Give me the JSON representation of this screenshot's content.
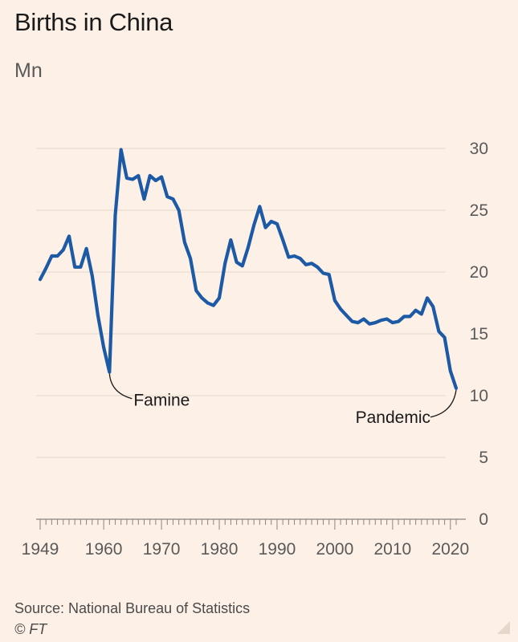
{
  "chart_data": {
    "type": "line",
    "title": "Births in China",
    "ylabel": "Mn",
    "xlabel": "",
    "ylim": [
      0,
      30
    ],
    "xlim": [
      1949,
      2021
    ],
    "y_ticks": [
      0,
      5,
      10,
      15,
      20,
      25,
      30
    ],
    "x_ticks": [
      1949,
      1960,
      1970,
      1980,
      1990,
      2000,
      2010,
      2020
    ],
    "grid": true,
    "series": [
      {
        "name": "Births",
        "color": "#1d5aa6",
        "x": [
          1949,
          1950,
          1951,
          1952,
          1953,
          1954,
          1955,
          1956,
          1957,
          1958,
          1959,
          1960,
          1961,
          1962,
          1963,
          1964,
          1965,
          1966,
          1967,
          1968,
          1969,
          1970,
          1971,
          1972,
          1973,
          1974,
          1975,
          1976,
          1977,
          1978,
          1979,
          1980,
          1981,
          1982,
          1983,
          1984,
          1985,
          1986,
          1987,
          1988,
          1989,
          1990,
          1991,
          1992,
          1993,
          1994,
          1995,
          1996,
          1997,
          1998,
          1999,
          2000,
          2001,
          2002,
          2003,
          2004,
          2005,
          2006,
          2007,
          2008,
          2009,
          2010,
          2011,
          2012,
          2013,
          2014,
          2015,
          2016,
          2017,
          2018,
          2019,
          2020,
          2021
        ],
        "values": [
          19.4,
          20.3,
          21.3,
          21.3,
          21.8,
          22.9,
          20.4,
          20.4,
          21.9,
          19.7,
          16.5,
          13.9,
          11.9,
          24.6,
          29.9,
          27.6,
          27.5,
          27.8,
          25.9,
          27.8,
          27.4,
          27.7,
          26.1,
          25.9,
          25.0,
          22.4,
          21.1,
          18.5,
          17.9,
          17.5,
          17.3,
          17.9,
          20.7,
          22.6,
          20.8,
          20.5,
          22.0,
          23.8,
          25.3,
          23.6,
          24.1,
          23.9,
          22.6,
          21.2,
          21.3,
          21.1,
          20.6,
          20.7,
          20.4,
          19.9,
          19.8,
          17.7,
          17.0,
          16.5,
          16.0,
          15.9,
          16.2,
          15.8,
          15.9,
          16.1,
          16.2,
          15.9,
          16.0,
          16.4,
          16.4,
          16.9,
          16.6,
          17.9,
          17.2,
          15.2,
          14.7,
          12.0,
          10.6
        ]
      }
    ],
    "annotations": [
      {
        "label": "Famine",
        "x": 1961,
        "y": 11.9
      },
      {
        "label": "Pandemic",
        "x": 2021,
        "y": 10.6
      }
    ]
  },
  "source": "Source: National Bureau of Statistics",
  "credit": "© FT"
}
